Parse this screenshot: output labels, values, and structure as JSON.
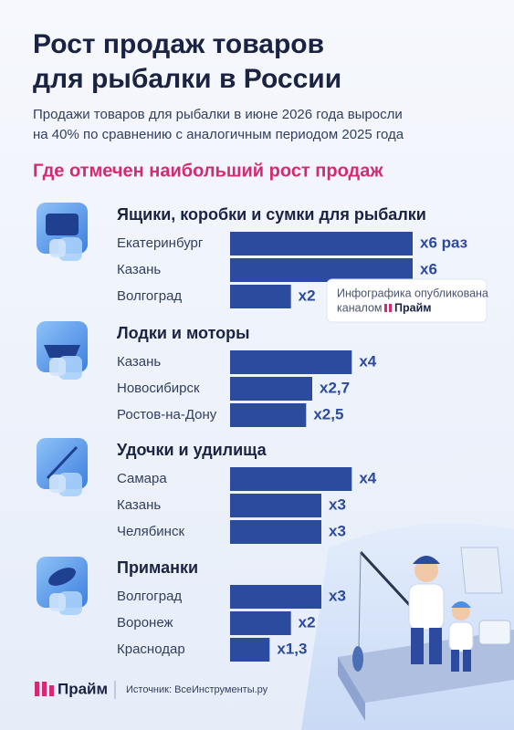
{
  "title_lines": [
    "Рост продаж товаров",
    "для рыбалки в России"
  ],
  "subtitle_lines": [
    "Продажи товаров для рыбалки в июне 2026 года выросли",
    "на 40% по сравнению с аналогичным периодом 2025 года"
  ],
  "section_title": "Где отмечен наибольший рост продаж",
  "chart_data": [
    {
      "type": "bar",
      "orientation": "horizontal",
      "title": "Ящики, коробки и сумки для рыбалки",
      "color": "#2c4a9e",
      "categories": [
        "Екатеринбург",
        "Казань",
        "Волгоград"
      ],
      "values": [
        6,
        6,
        2
      ],
      "value_labels": [
        "x6 раз",
        "x6",
        "x2"
      ]
    },
    {
      "type": "bar",
      "orientation": "horizontal",
      "title": "Лодки и моторы",
      "color": "#2c4a9e",
      "categories": [
        "Казань",
        "Новосибирск",
        "Ростов-на-Дону"
      ],
      "values": [
        4,
        2.7,
        2.5
      ],
      "value_labels": [
        "x4",
        "x2,7",
        "x2,5"
      ]
    },
    {
      "type": "bar",
      "orientation": "horizontal",
      "title": "Удочки и удилища",
      "color": "#2c4a9e",
      "categories": [
        "Самара",
        "Казань",
        "Челябинск"
      ],
      "values": [
        4,
        3,
        3
      ],
      "value_labels": [
        "x4",
        "x3",
        "x3"
      ]
    },
    {
      "type": "bar",
      "orientation": "horizontal",
      "title": "Приманки",
      "color": "#2c4a9e",
      "categories": [
        "Волгоград",
        "Воронеж",
        "Краснодар"
      ],
      "values": [
        3,
        2,
        1.3
      ],
      "value_labels": [
        "x3",
        "x2",
        "x1,3"
      ]
    }
  ],
  "note": {
    "text_lines": [
      "Инфографика опубликована",
      "каналом"
    ],
    "brand": "Прайм"
  },
  "footer": {
    "brand": "Прайм",
    "source": "Источник: ВсеИнструменты.ру"
  }
}
